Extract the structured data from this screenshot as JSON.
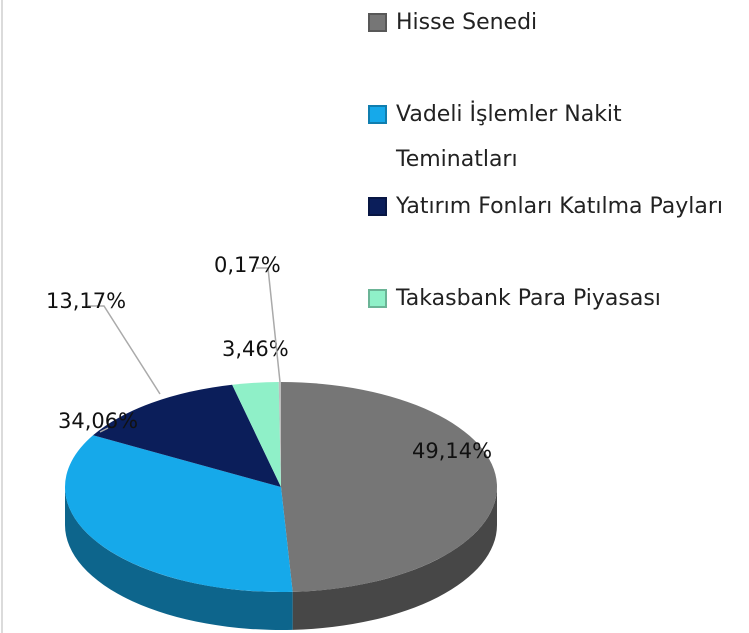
{
  "chart_data": {
    "type": "pie3d",
    "categories": [
      "Hisse Senedi",
      "Vadeli İşlemler Nakit Teminatları",
      "Yatırım Fonları Katılma Payları",
      "Takasbank Para Piyasası",
      null
    ],
    "values": [
      49.14,
      34.06,
      13.17,
      3.46,
      0.17
    ],
    "value_labels": [
      "49,14%",
      "34,06%",
      "13,17%",
      "3,46%",
      "0,17%"
    ],
    "colors": [
      "#767676",
      "#16a9ea",
      "#0b1e5a",
      "#8ff0c8",
      "#bdbdbd"
    ],
    "legend": "right"
  }
}
